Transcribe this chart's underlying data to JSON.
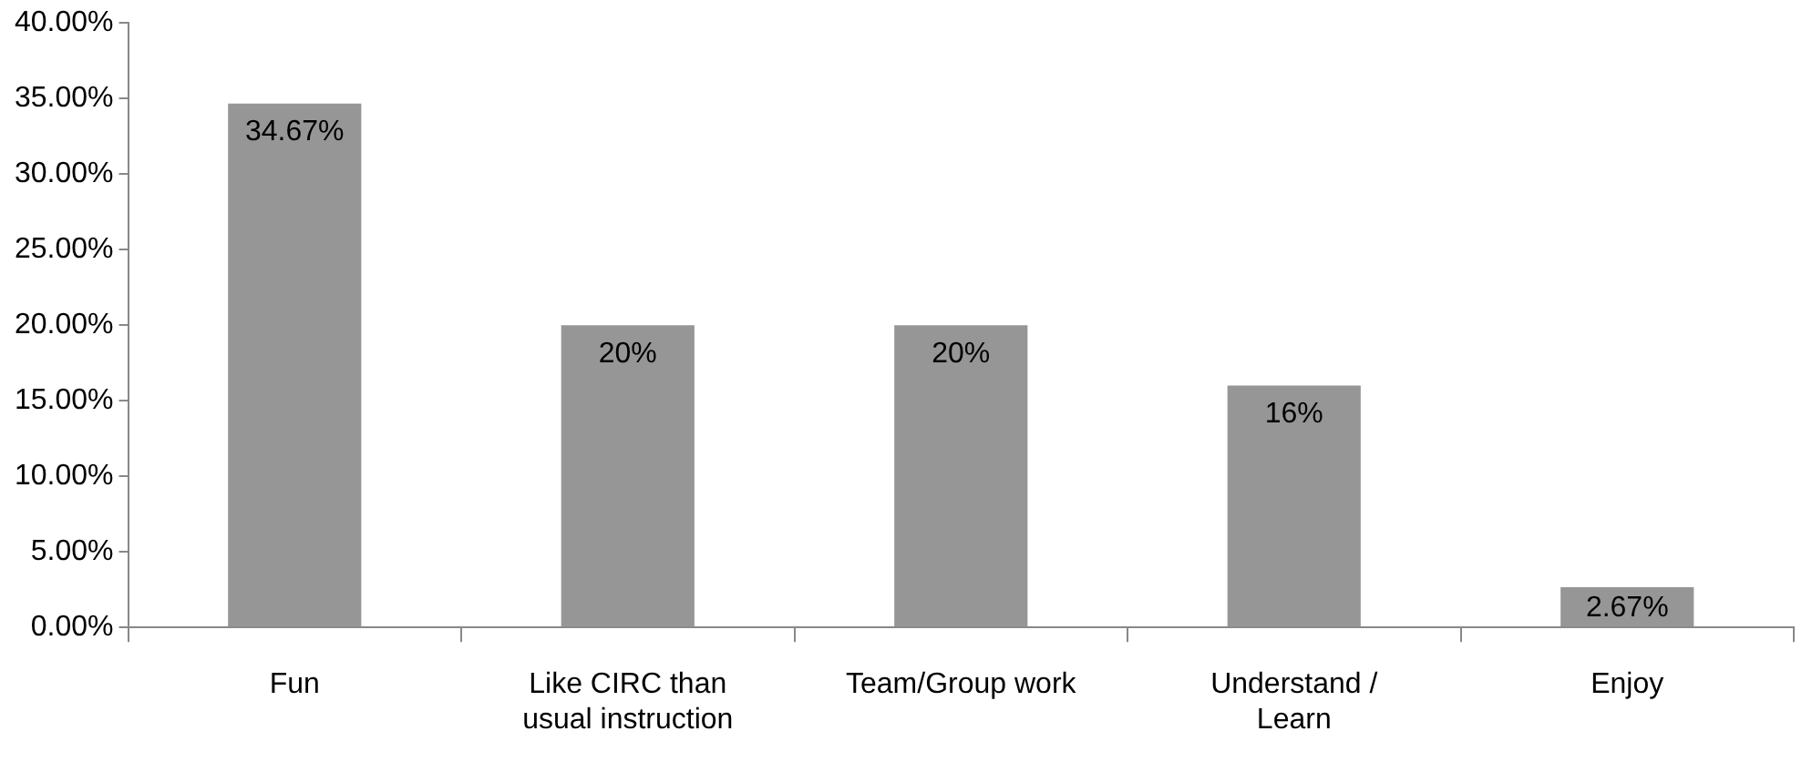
{
  "chart_data": {
    "type": "bar",
    "categories": [
      "Fun",
      "Like CIRC than usual instruction",
      "Team/Group work",
      "Understand / Learn",
      "Enjoy"
    ],
    "values": [
      34.67,
      20,
      20,
      16,
      2.67
    ],
    "value_labels": [
      "34.67%",
      "20%",
      "20%",
      "16%",
      "2.67%"
    ],
    "color": "#969696",
    "ylim": [
      0,
      40
    ],
    "yticks": [
      {
        "value": 0,
        "label": "0.00%"
      },
      {
        "value": 5,
        "label": "5.00%"
      },
      {
        "value": 10,
        "label": "10.00%"
      },
      {
        "value": 15,
        "label": "15.00%"
      },
      {
        "value": 20,
        "label": "20.00%"
      },
      {
        "value": 25,
        "label": "25.00%"
      },
      {
        "value": 30,
        "label": "30.00%"
      },
      {
        "value": 35,
        "label": "35.00%"
      },
      {
        "value": 40,
        "label": "40.00%"
      }
    ],
    "grid": false,
    "legend": false
  }
}
